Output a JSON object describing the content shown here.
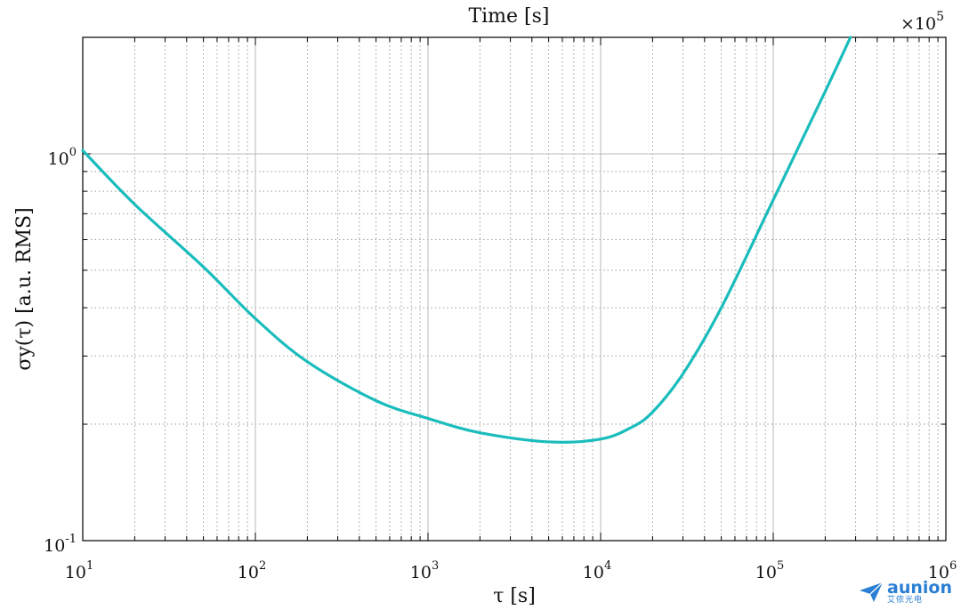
{
  "chart_data": {
    "type": "line",
    "title_top": "Time [s]",
    "multiplier": "×10",
    "multiplier_exp": "5",
    "xlabel": "τ [s]",
    "ylabel": "σy(τ) [a.u. RMS]",
    "xscale": "log",
    "yscale": "log",
    "xlim": [
      10,
      1000000
    ],
    "ylim": [
      0.1,
      2.0
    ],
    "x_ticks": [
      {
        "base": "10",
        "exp": "1",
        "value": 10
      },
      {
        "base": "10",
        "exp": "2",
        "value": 100
      },
      {
        "base": "10",
        "exp": "3",
        "value": 1000
      },
      {
        "base": "10",
        "exp": "4",
        "value": 10000
      },
      {
        "base": "10",
        "exp": "5",
        "value": 100000
      },
      {
        "base": "10",
        "exp": "6",
        "value": 1000000
      }
    ],
    "y_ticks": [
      {
        "base": "10",
        "exp": "0",
        "value": 1
      },
      {
        "base": "10",
        "exp": "-1",
        "value": 0.1
      }
    ],
    "grid": true,
    "color": "#1abcbc",
    "series": [
      {
        "x": [
          10,
          20,
          50,
          100,
          200,
          500,
          1000,
          2000,
          5000,
          10000,
          15000,
          20000,
          30000,
          50000,
          100000,
          200000,
          280000
        ],
        "y": [
          1.02,
          0.74,
          0.51,
          0.375,
          0.29,
          0.23,
          0.207,
          0.19,
          0.18,
          0.183,
          0.196,
          0.215,
          0.27,
          0.4,
          0.76,
          1.45,
          2.0
        ]
      }
    ]
  },
  "brand": {
    "name": "aunion",
    "sub": "艾侬光电"
  }
}
